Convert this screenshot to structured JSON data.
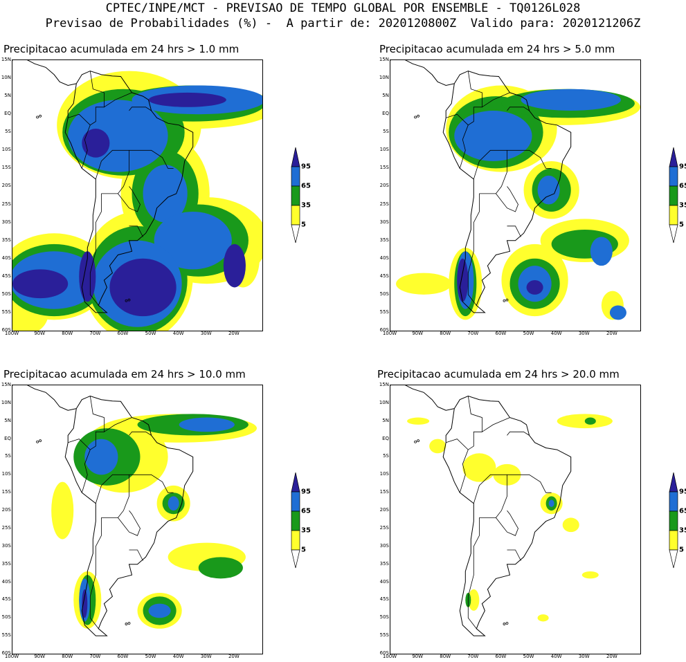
{
  "header": {
    "line1": "CPTEC/INPE/MCT - PREVISAO DE TEMPO GLOBAL POR ENSEMBLE - TQ0126L028",
    "line2": "Previsao de Probabilidades (%) -  A partir de: 2020120800Z  Valido para: 2020121206Z"
  },
  "axes": {
    "lat_labels": [
      "15N",
      "10N",
      "5N",
      "EQ",
      "5S",
      "10S",
      "15S",
      "20S",
      "25S",
      "30S",
      "35S",
      "40S",
      "45S",
      "50S",
      "55S",
      "60S"
    ],
    "lon_labels": [
      "100W",
      "90W",
      "80W",
      "70W",
      "60W",
      "50W",
      "40W",
      "30W",
      "20W"
    ]
  },
  "legend": {
    "labels": [
      "95",
      "65",
      "35",
      "5"
    ],
    "colors": {
      "c95": "#2a1f99",
      "c65": "#1f6ed4",
      "c35": "#19991b",
      "c5": "#ffff2d",
      "land": "#000000"
    }
  },
  "panels": [
    {
      "title": "Precipitacao acumulada em 24 hrs > 1.0 mm"
    },
    {
      "title": "Precipitacao acumulada em 24 hrs > 5.0 mm"
    },
    {
      "title": "Precipitacao acumulada em 24 hrs > 10.0 mm"
    },
    {
      "title": "Precipitacao acumulada em 24 hrs > 20.0 mm"
    }
  ]
}
